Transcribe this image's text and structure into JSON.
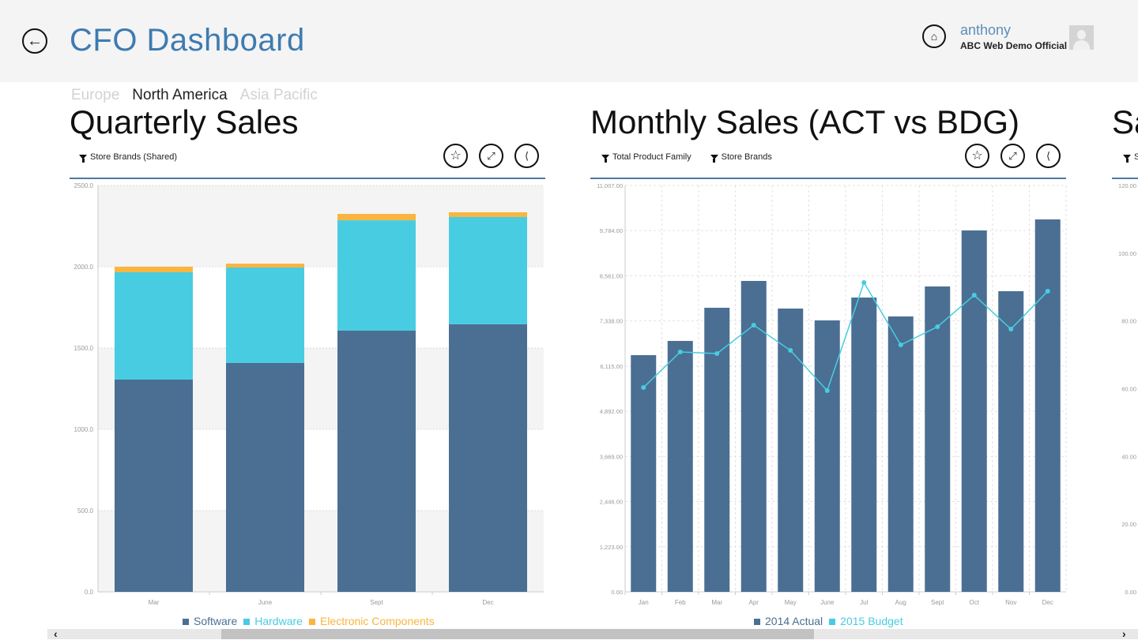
{
  "header": {
    "title": "CFO Dashboard",
    "user_name": "anthony",
    "organization": "ABC Web Demo Official"
  },
  "region_tabs": [
    {
      "label": "Europe",
      "active": false
    },
    {
      "label": "North America",
      "active": true
    },
    {
      "label": "Asia Pacific",
      "active": false
    }
  ],
  "panels": [
    {
      "title": "Quarterly Sales",
      "filters": [
        "Store Brands (Shared)"
      ]
    },
    {
      "title": "Monthly Sales (ACT vs BDG)",
      "filters": [
        "Total Product Family",
        "Store Brands"
      ]
    },
    {
      "title": "Sa",
      "filters": [
        "S"
      ]
    }
  ],
  "colors": {
    "software": "#4a6f93",
    "hardware": "#48cce2",
    "electronic": "#f9b53f",
    "accent": "#3e7bb0"
  },
  "chart_data": [
    {
      "type": "bar",
      "stacked": true,
      "title": "Quarterly Sales",
      "categories": [
        "Mar",
        "June",
        "Sept",
        "Dec"
      ],
      "series": [
        {
          "name": "Software",
          "values": [
            1306,
            1408,
            1607,
            1646
          ]
        },
        {
          "name": "Hardware",
          "values": [
            660,
            587,
            679,
            660
          ]
        },
        {
          "name": "Electronic Components",
          "values": [
            34,
            24,
            39,
            29
          ]
        }
      ],
      "ylim": [
        0,
        2500
      ],
      "yticks": [
        "0.0",
        "500.0",
        "1000.0",
        "1500.0",
        "2000.0",
        "2500.0"
      ],
      "legend": "bottom"
    },
    {
      "type": "bar+line",
      "title": "Monthly Sales (ACT vs BDG)",
      "categories": [
        "Jan",
        "Feb",
        "Mar",
        "Apr",
        "May",
        "June",
        "Jul",
        "Aug",
        "Sept",
        "Oct",
        "Nov",
        "Dec"
      ],
      "series": [
        {
          "name": "2014 Actual",
          "type": "bar",
          "values": [
            6411,
            6796,
            7694,
            8421,
            7673,
            7352,
            7971,
            7459,
            8271,
            9788,
            8143,
            10087
          ]
        },
        {
          "name": "2015 Budget",
          "type": "line",
          "values": [
            5535,
            6497,
            6454,
            7223,
            6539,
            5450,
            8377,
            6689,
            7180,
            8035,
            7116,
            8142
          ]
        }
      ],
      "ylim": [
        0,
        11007
      ],
      "yticks": [
        "0.00",
        "1,223.00",
        "2,446.00",
        "3,669.00",
        "4,892.00",
        "6,115.00",
        "7,338.00",
        "8,561.00",
        "9,784.00",
        "11,007.00"
      ],
      "legend": "bottom"
    },
    {
      "type": "bar",
      "title": "Sa",
      "ylim": [
        0,
        120
      ],
      "yticks": [
        "0.00",
        "20.00",
        "40.00",
        "60.00",
        "80.00",
        "100.00",
        "120.00"
      ]
    }
  ]
}
